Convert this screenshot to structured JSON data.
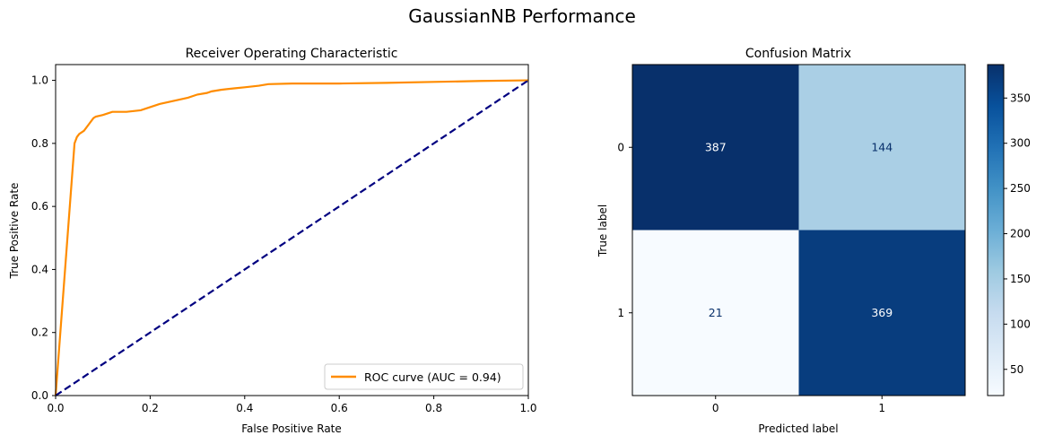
{
  "figure": {
    "suptitle": "GaussianNB Performance"
  },
  "chart_data": [
    {
      "type": "line",
      "title": "Receiver Operating Characteristic",
      "xlabel": "False Positive Rate",
      "ylabel": "True Positive Rate",
      "xlim": [
        0.0,
        1.0
      ],
      "ylim": [
        0.0,
        1.05
      ],
      "xticks": [
        "0.0",
        "0.2",
        "0.4",
        "0.6",
        "0.8",
        "1.0"
      ],
      "yticks": [
        "0.0",
        "0.2",
        "0.4",
        "0.6",
        "0.8",
        "1.0"
      ],
      "grid": false,
      "legend_position": "lower-right",
      "series": [
        {
          "name": "ROC curve (AUC = 0.94)",
          "color": "#ff8c00",
          "style": "solid",
          "x": [
            0.0,
            0.04,
            0.045,
            0.05,
            0.06,
            0.07,
            0.08,
            0.085,
            0.1,
            0.12,
            0.15,
            0.18,
            0.2,
            0.22,
            0.25,
            0.28,
            0.3,
            0.32,
            0.33,
            0.35,
            0.38,
            0.4,
            0.43,
            0.45,
            0.5,
            0.6,
            0.7,
            0.8,
            0.9,
            1.0
          ],
          "y": [
            0.0,
            0.8,
            0.82,
            0.83,
            0.84,
            0.86,
            0.88,
            0.885,
            0.89,
            0.9,
            0.9,
            0.905,
            0.915,
            0.925,
            0.935,
            0.945,
            0.955,
            0.96,
            0.965,
            0.97,
            0.975,
            0.978,
            0.983,
            0.988,
            0.99,
            0.99,
            0.992,
            0.995,
            0.998,
            1.0
          ]
        },
        {
          "color": "#000080",
          "style": "dashed",
          "x": [
            0.0,
            1.0
          ],
          "y": [
            0.0,
            1.0
          ]
        }
      ]
    },
    {
      "type": "heatmap",
      "title": "Confusion Matrix",
      "xlabel": "Predicted label",
      "ylabel": "True label",
      "x_categories": [
        "0",
        "1"
      ],
      "y_categories": [
        "0",
        "1"
      ],
      "values": [
        [
          387,
          144
        ],
        [
          21,
          369
        ]
      ],
      "colormap": "Blues",
      "colorbar": {
        "range": [
          21,
          387
        ],
        "ticks": [
          "50",
          "100",
          "150",
          "200",
          "250",
          "300",
          "350"
        ]
      }
    }
  ]
}
